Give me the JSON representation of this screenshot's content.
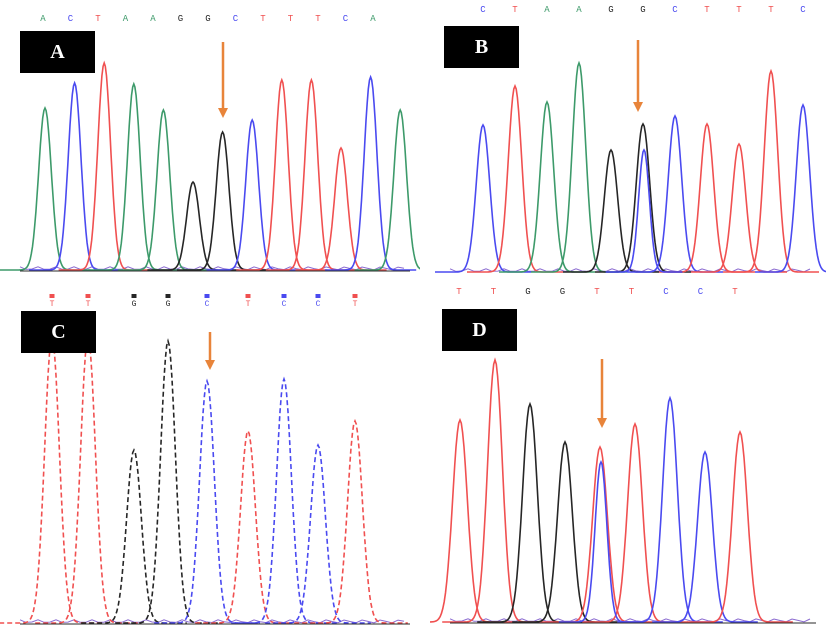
{
  "colors": {
    "A": "#3d9a6a",
    "C": "#4a4af0",
    "G": "#262626",
    "T": "#f05050",
    "arrow": "#e8843a"
  },
  "panels": [
    {
      "label": "A",
      "bases": [
        "A",
        "C",
        "T",
        "A",
        "A",
        "G",
        "G",
        "C",
        "T",
        "T",
        "T",
        "C",
        "A"
      ],
      "marked_base_index": 6,
      "style": "solid",
      "secondary_peak_base": null
    },
    {
      "label": "B",
      "bases": [
        "C",
        "T",
        "A",
        "A",
        "G",
        "G",
        "C",
        "T",
        "T",
        "T",
        "C"
      ],
      "marked_base_index": 5,
      "style": "solid",
      "secondary_peak_base": "C"
    },
    {
      "label": "C",
      "bases": [
        "T",
        "T",
        "G",
        "G",
        "C",
        "T",
        "C",
        "C",
        "T"
      ],
      "marked_base_index": 4,
      "style": "dashed",
      "secondary_peak_base": null
    },
    {
      "label": "D",
      "bases": [
        "T",
        "T",
        "G",
        "G",
        "T",
        "T",
        "C",
        "C",
        "T"
      ],
      "marked_base_index": 4,
      "style": "solid",
      "secondary_peak_base": "C"
    }
  ]
}
